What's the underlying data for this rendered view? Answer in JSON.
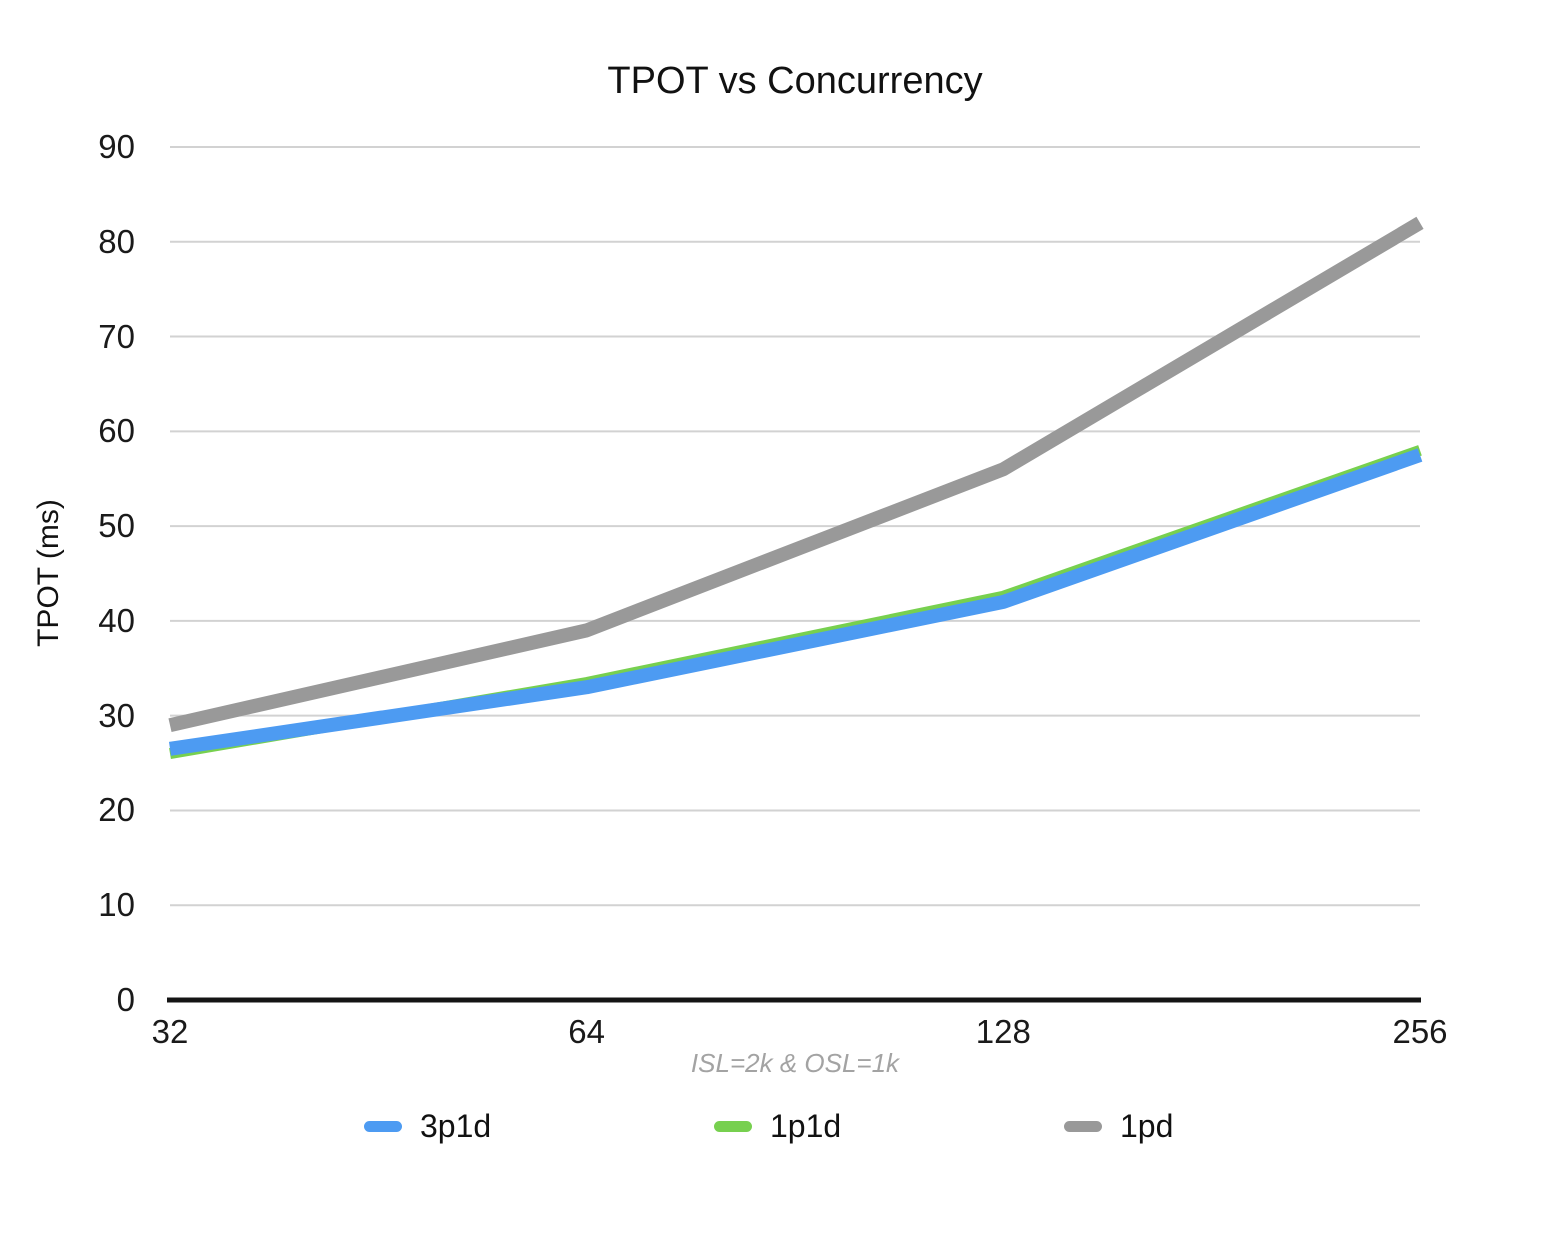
{
  "chart_data": {
    "type": "line",
    "title": "TPOT vs Concurrency",
    "ylabel": "TPOT (ms)",
    "xlabel": "",
    "caption": "ISL=2k & OSL=1k",
    "categories": [
      "32",
      "64",
      "128",
      "256"
    ],
    "series": [
      {
        "name": "3p1d",
        "color": "#4d9bf2",
        "stroke_width": 14,
        "values": [
          26.5,
          33.0,
          42.0,
          57.5
        ]
      },
      {
        "name": "1p1d",
        "color": "#77d04f",
        "stroke_width": 11,
        "values": [
          26.0,
          33.5,
          42.6,
          58.0
        ]
      },
      {
        "name": "1pd",
        "color": "#999999",
        "stroke_width": 14,
        "values": [
          29.0,
          39.0,
          56.0,
          82.0
        ]
      }
    ],
    "draw_order": [
      "1p1d",
      "3p1d",
      "1pd"
    ],
    "ylim": [
      0,
      90
    ],
    "ytick_step": 10,
    "grid": true,
    "legend_position": "bottom",
    "colors": {
      "gridline": "#d2d2d2",
      "axis_line": "#141414",
      "tick_label": "#1a1a1a",
      "caption": "#a3a3a3",
      "title": "#111111"
    }
  }
}
